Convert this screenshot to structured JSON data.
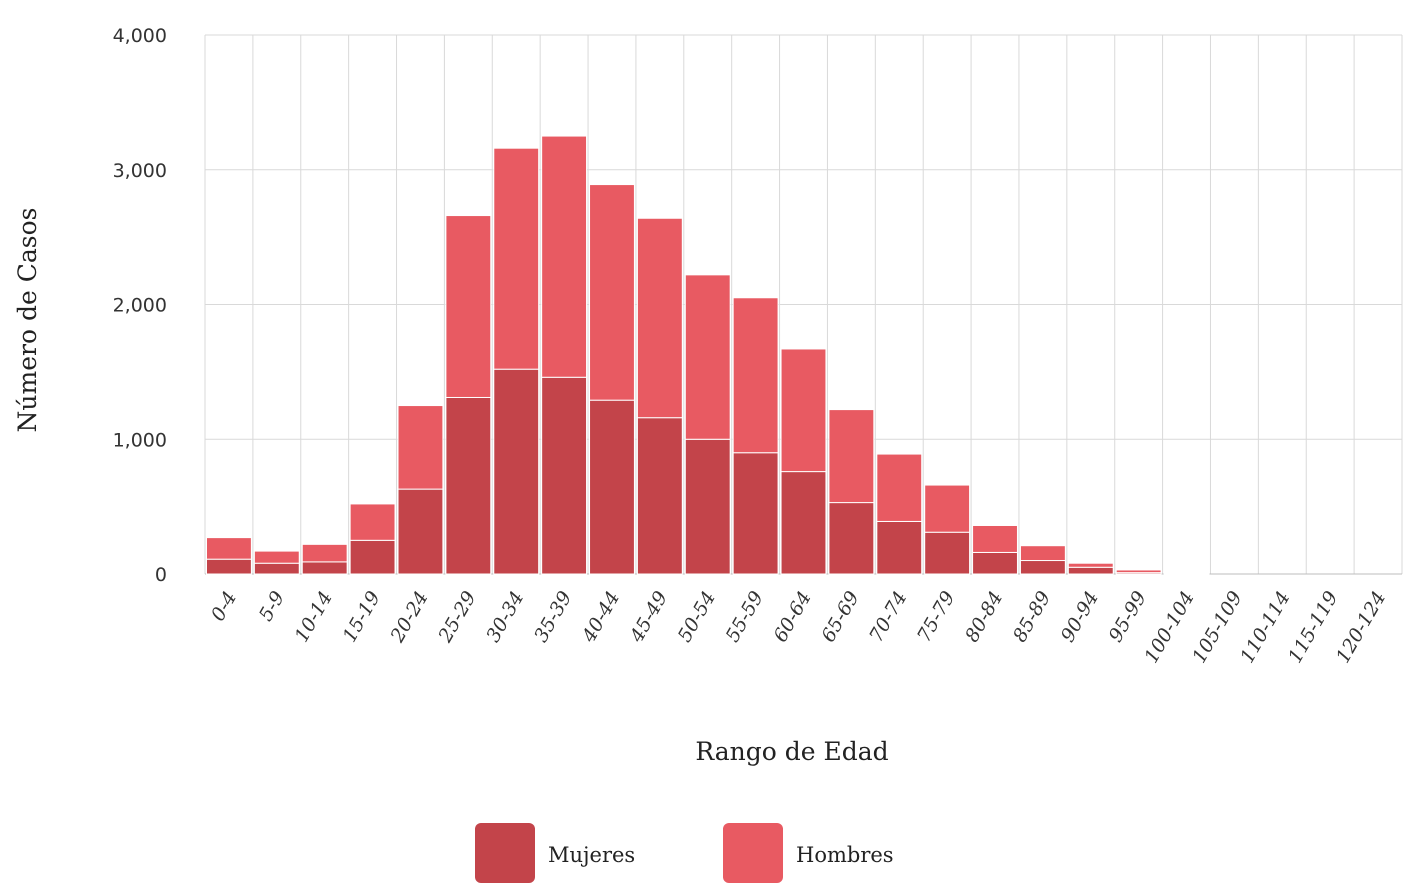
{
  "chart_data": {
    "type": "bar",
    "stacked": true,
    "xlabel": "Rango de Edad",
    "ylabel": "Número de Casos",
    "ylim": [
      0,
      4000
    ],
    "yticks": [
      0,
      1000,
      2000,
      3000,
      4000
    ],
    "ytick_labels": [
      "0",
      "1,000",
      "2,000",
      "3,000",
      "4,000"
    ],
    "grid": true,
    "legend_position": "bottom",
    "categories": [
      "0-4",
      "5-9",
      "10-14",
      "15-19",
      "20-24",
      "25-29",
      "30-34",
      "35-39",
      "40-44",
      "45-49",
      "50-54",
      "55-59",
      "60-64",
      "65-69",
      "70-74",
      "75-79",
      "80-84",
      "85-89",
      "90-94",
      "95-99",
      "100-104",
      "105-109",
      "110-114",
      "115-119",
      "120-124"
    ],
    "series": [
      {
        "name": "Mujeres",
        "color": "#c3444a",
        "values": [
          110,
          80,
          90,
          250,
          630,
          1310,
          1520,
          1460,
          1290,
          1160,
          1000,
          900,
          760,
          530,
          390,
          310,
          160,
          100,
          50,
          10,
          0,
          0,
          0,
          0,
          0
        ]
      },
      {
        "name": "Hombres",
        "color": "#e85a62",
        "values": [
          160,
          90,
          130,
          270,
          620,
          1350,
          1640,
          1790,
          1600,
          1480,
          1220,
          1150,
          910,
          690,
          500,
          350,
          200,
          110,
          30,
          20,
          5,
          0,
          0,
          0,
          0
        ]
      }
    ]
  }
}
